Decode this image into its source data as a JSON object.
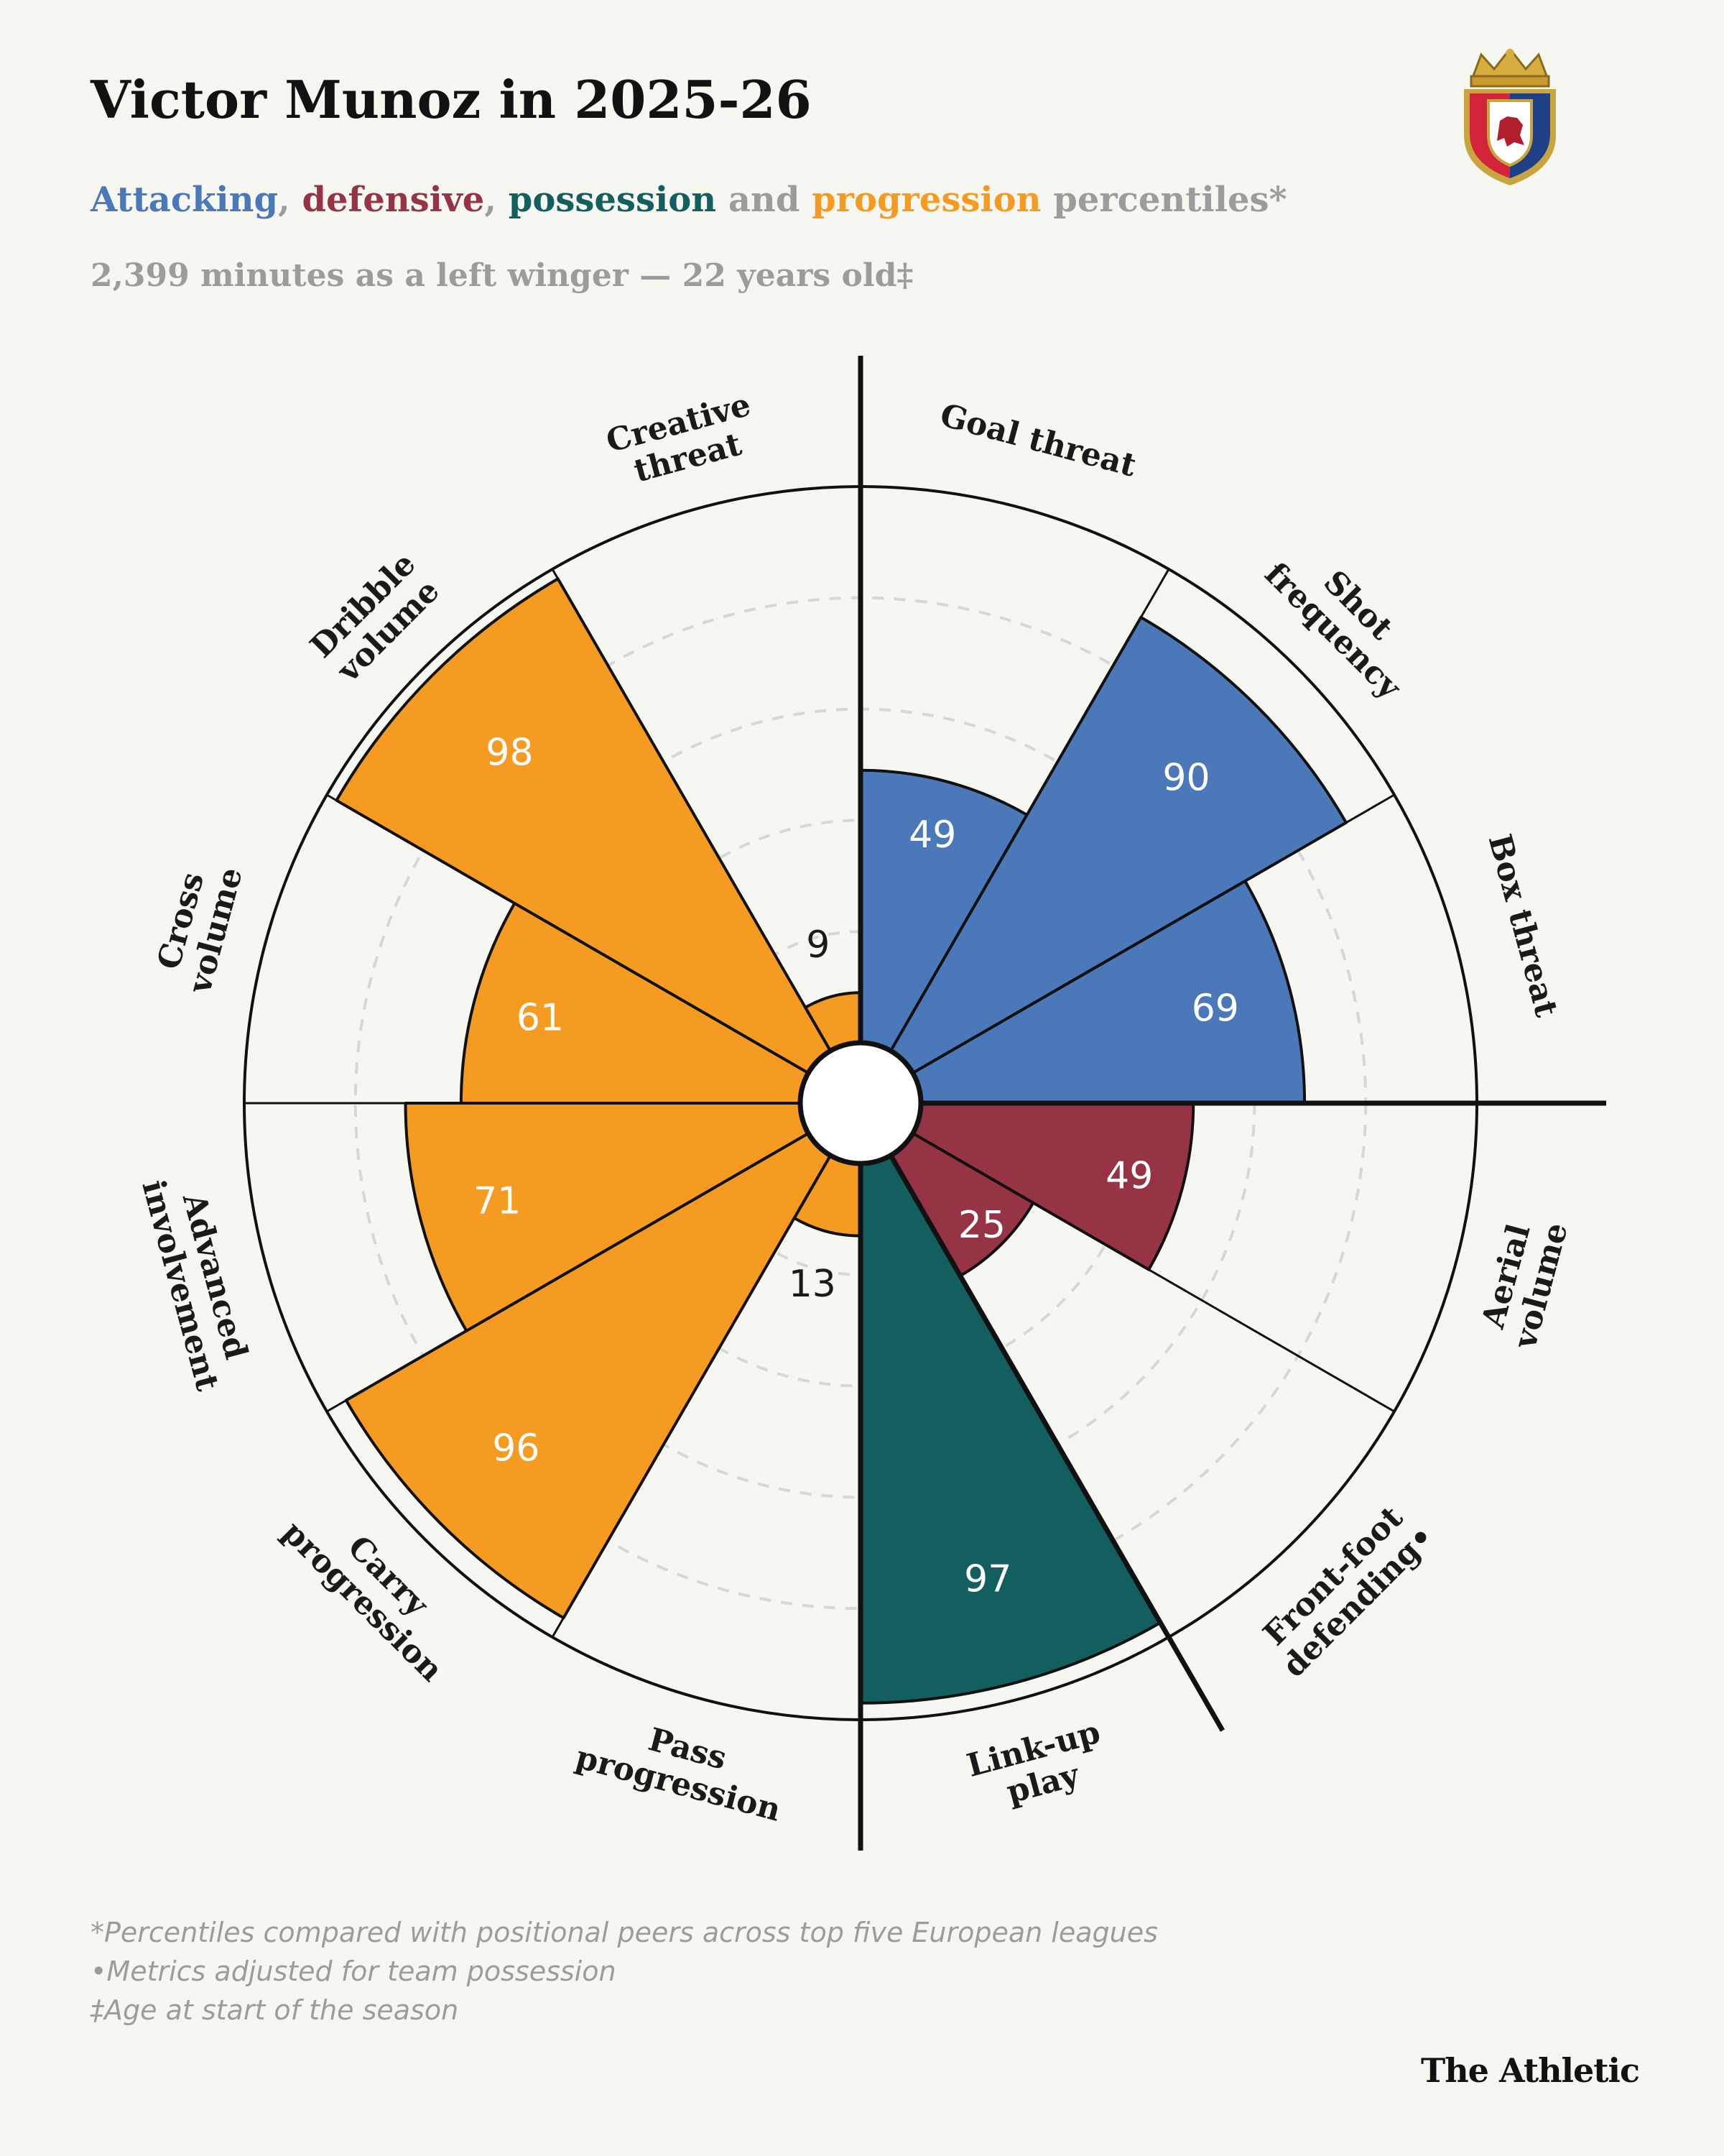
{
  "title": "Victor Munoz in 2025-26",
  "subtitle": {
    "attacking": "Attacking",
    "sep1": ", ",
    "defensive": "defensive",
    "sep2": ", ",
    "possession": "possession",
    "and": " and ",
    "progression": "progression",
    "rest": " percentiles*"
  },
  "meta": "2,399 minutes as a left winger — 22 years old‡",
  "colors": {
    "attacking": "#4a78b8",
    "defensive": "#963445",
    "possession": "#135e5f",
    "progression": "#f59b22",
    "background": "#f7f7f2",
    "muted": "#9c9c9c"
  },
  "chart_data": {
    "type": "polar-bar",
    "title": "Victor Munoz in 2025-26",
    "range": [
      0,
      100
    ],
    "series": [
      {
        "label": "Goal threat",
        "value": 49,
        "group": "attacking"
      },
      {
        "label": "Shot frequency",
        "value": 90,
        "group": "attacking"
      },
      {
        "label": "Box threat",
        "value": 69,
        "group": "attacking"
      },
      {
        "label": "Aerial volume",
        "value": 49,
        "group": "defensive"
      },
      {
        "label": "Front-foot defending•",
        "value": 25,
        "group": "defensive"
      },
      {
        "label": "Link-up play",
        "value": 97,
        "group": "possession"
      },
      {
        "label": "Pass progression",
        "value": 13,
        "group": "progression"
      },
      {
        "label": "Carry progression",
        "value": 96,
        "group": "progression"
      },
      {
        "label": "Advanced involvement",
        "value": 71,
        "group": "progression"
      },
      {
        "label": "Cross volume",
        "value": 61,
        "group": "progression"
      },
      {
        "label": "Dribble volume",
        "value": 98,
        "group": "progression"
      },
      {
        "label": "Creative threat",
        "value": 9,
        "group": "progression"
      }
    ]
  },
  "footnotes": [
    "*Percentiles compared with positional peers across top five European leagues",
    "•Metrics adjusted for team possession",
    "‡Age at start of the season"
  ],
  "brand": "The Athletic"
}
